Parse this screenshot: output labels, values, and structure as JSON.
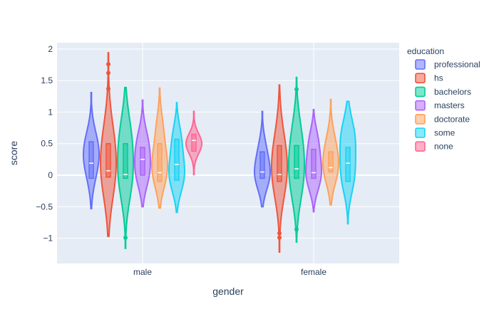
{
  "chart_data": {
    "type": "violin",
    "xlabel": "gender",
    "ylabel": "score",
    "categories": [
      "male",
      "female"
    ],
    "ylim": [
      -1.4,
      2.1
    ],
    "yticks": [
      -1,
      -0.5,
      0,
      0.5,
      1,
      1.5,
      2
    ],
    "ytick_labels": [
      "−1",
      "−0.5",
      "0",
      "0.5",
      "1",
      "1.5",
      "2"
    ],
    "grid": true,
    "legend_title": "education",
    "legend_position": "right",
    "series": [
      {
        "name": "professional",
        "color": "#636efa",
        "groups": [
          {
            "category": "male",
            "range": [
              -0.53,
              1.31
            ],
            "median": 0.19,
            "q1": -0.05,
            "q3": 0.53,
            "peaks": [
              [
                0.45,
                0.9
              ],
              [
                0.1,
                0.6
              ]
            ],
            "outliers": []
          },
          {
            "category": "female",
            "range": [
              -0.5,
              1.01
            ],
            "median": 0.05,
            "q1": -0.05,
            "q3": 0.37,
            "peaks": [
              [
                0.0,
                1.0
              ],
              [
                0.4,
                0.45
              ]
            ],
            "outliers": []
          }
        ]
      },
      {
        "name": "hs",
        "color": "#ef553b",
        "groups": [
          {
            "category": "male",
            "range": [
              -0.97,
              1.94
            ],
            "median": 0.07,
            "q1": -0.03,
            "q3": 0.5,
            "peaks": [
              [
                0.0,
                1.0
              ],
              [
                0.55,
                0.7
              ]
            ],
            "outliers": [
              1.76,
              1.62,
              1.37
            ]
          },
          {
            "category": "female",
            "range": [
              -1.22,
              1.43
            ],
            "median": 0.01,
            "q1": -0.1,
            "q3": 0.47,
            "peaks": [
              [
                0.0,
                1.0
              ],
              [
                0.5,
                0.5
              ]
            ],
            "outliers": [
              -0.92,
              -0.99
            ]
          }
        ]
      },
      {
        "name": "bachelors",
        "color": "#00cc96",
        "groups": [
          {
            "category": "male",
            "range": [
              -1.16,
              1.39
            ],
            "median": 0.01,
            "q1": -0.05,
            "q3": 0.5,
            "peaks": [
              [
                -0.05,
                1.0
              ],
              [
                0.6,
                0.85
              ]
            ],
            "outliers": [
              -0.99
            ]
          },
          {
            "category": "female",
            "range": [
              -1.06,
              1.55
            ],
            "median": 0.1,
            "q1": -0.05,
            "q3": 0.47,
            "peaks": [
              [
                -0.05,
                1.0
              ],
              [
                0.55,
                0.75
              ]
            ],
            "outliers": [
              1.36,
              -0.86
            ]
          }
        ]
      },
      {
        "name": "masters",
        "color": "#ab63fa",
        "groups": [
          {
            "category": "male",
            "range": [
              -0.5,
              1.19
            ],
            "median": 0.25,
            "q1": 0.0,
            "q3": 0.44,
            "peaks": [
              [
                0.05,
                0.85
              ],
              [
                0.5,
                0.7
              ]
            ],
            "outliers": []
          },
          {
            "category": "female",
            "range": [
              -0.58,
              1.04
            ],
            "median": 0.04,
            "q1": -0.05,
            "q3": 0.41,
            "peaks": [
              [
                0.0,
                1.0
              ],
              [
                0.5,
                0.65
              ]
            ],
            "outliers": []
          }
        ]
      },
      {
        "name": "doctorate",
        "color": "#ffa15a",
        "groups": [
          {
            "category": "male",
            "range": [
              -0.52,
              1.38
            ],
            "median": 0.04,
            "q1": -0.1,
            "q3": 0.5,
            "peaks": [
              [
                0.1,
                1.0
              ],
              [
                0.7,
                0.45
              ]
            ],
            "outliers": []
          },
          {
            "category": "female",
            "range": [
              -0.47,
              1.2
            ],
            "median": 0.12,
            "q1": 0.05,
            "q3": 0.37,
            "peaks": [
              [
                0.1,
                1.0
              ],
              [
                0.5,
                0.55
              ]
            ],
            "outliers": []
          }
        ]
      },
      {
        "name": "some",
        "color": "#19d3f3",
        "groups": [
          {
            "category": "male",
            "range": [
              -0.59,
              1.15
            ],
            "median": 0.17,
            "q1": -0.08,
            "q3": 0.57,
            "peaks": [
              [
                0.0,
                1.0
              ],
              [
                0.55,
                0.6
              ]
            ],
            "outliers": []
          },
          {
            "category": "female",
            "range": [
              -0.77,
              1.17
            ],
            "median": 0.19,
            "q1": -0.1,
            "q3": 0.44,
            "peaks": [
              [
                0.0,
                0.8
              ],
              [
                0.6,
                0.85
              ]
            ],
            "outliers": []
          }
        ]
      },
      {
        "name": "none",
        "color": "#ff6692",
        "groups": [
          {
            "category": "male",
            "range": [
              0.01,
              1.01
            ],
            "median": 0.55,
            "q1": 0.38,
            "q3": 0.65,
            "peaks": [
              [
                0.5,
                1.0
              ]
            ],
            "outliers": []
          }
        ]
      }
    ]
  }
}
